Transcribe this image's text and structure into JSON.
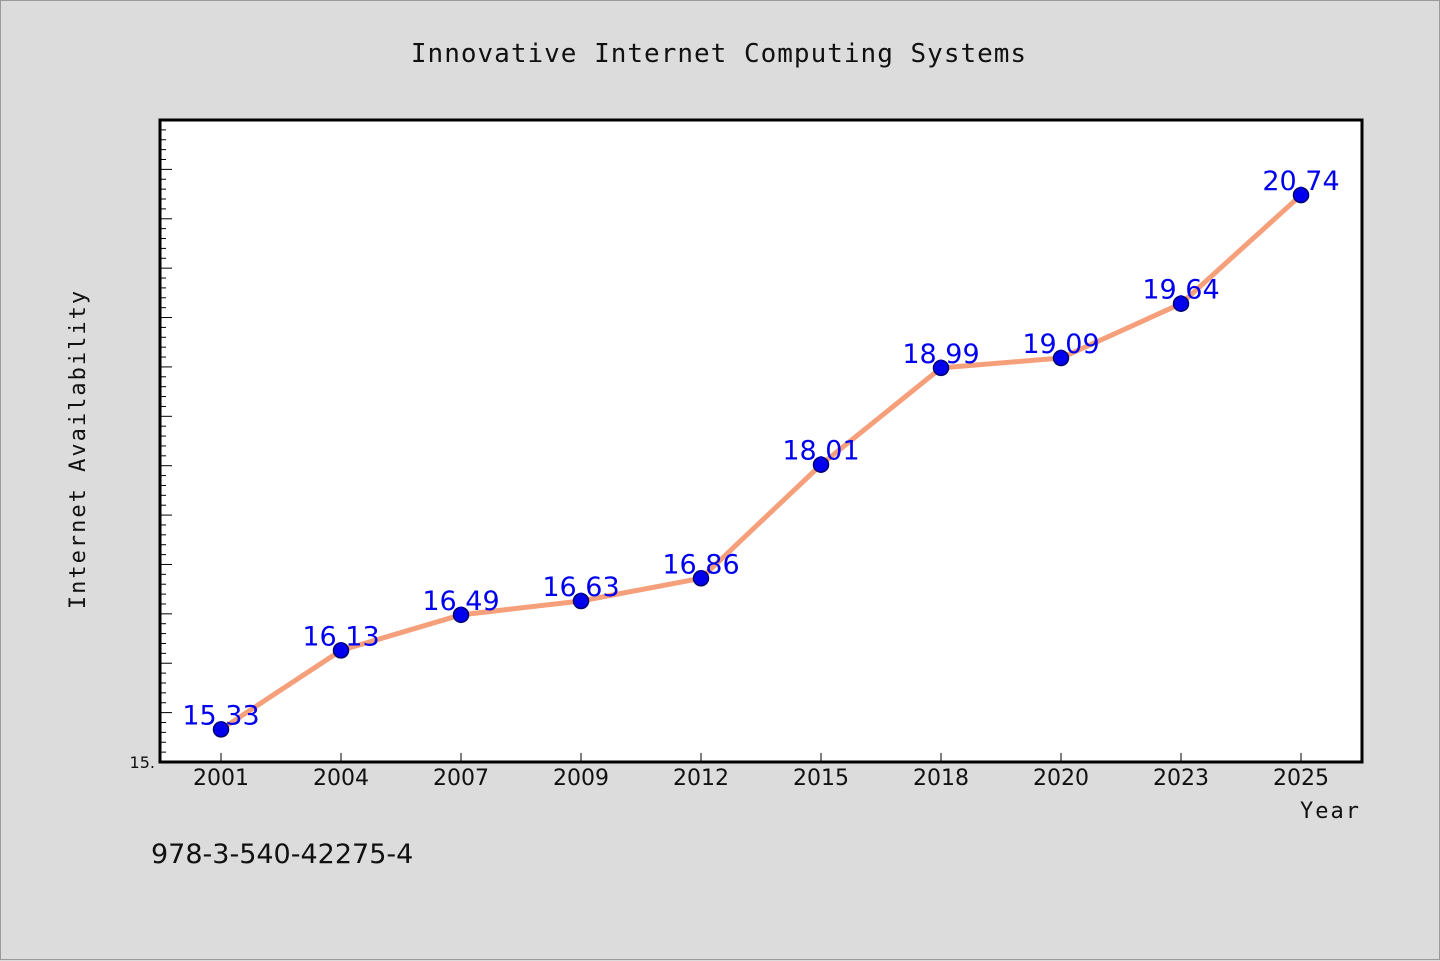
{
  "chart_data": {
    "type": "line",
    "title": "Innovative Internet Computing Systems",
    "xlabel": "Year",
    "ylabel": "Internet Availability",
    "categories": [
      "2001",
      "2004",
      "2007",
      "2009",
      "2012",
      "2015",
      "2018",
      "2020",
      "2023",
      "2025"
    ],
    "series": [
      {
        "values": [
          15.33,
          16.13,
          16.49,
          16.63,
          16.86,
          18.01,
          18.99,
          19.09,
          19.64,
          20.74
        ],
        "labels": [
          "15.33",
          "16.13",
          "16.49",
          "16.63",
          "16.86",
          "18.01",
          "18.99",
          "19.09",
          "19.64",
          "20.74"
        ]
      }
    ],
    "ylim": [
      15.0,
      21.5
    ],
    "ytick_label": "15.",
    "grid": false,
    "line_color": "#f5a07a",
    "marker_color": "#0000ee",
    "label_color": "#0000ee",
    "background": "#dcdcdc",
    "plot_background": "#ffffff"
  },
  "footnote": "978-3-540-42275-4"
}
